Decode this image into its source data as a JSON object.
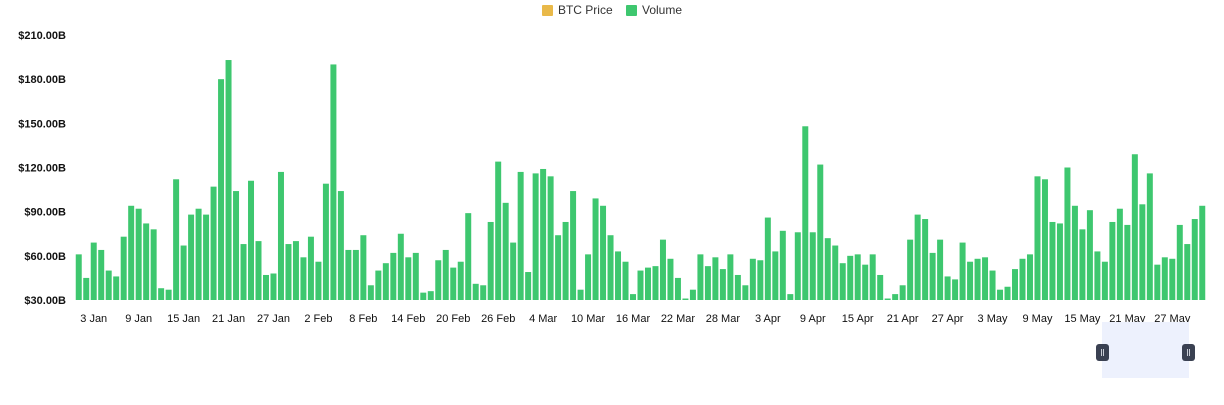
{
  "legend": {
    "items": [
      {
        "label": "BTC Price",
        "color": "#e9b949"
      },
      {
        "label": "Volume",
        "color": "#3ec76f"
      }
    ]
  },
  "chart_data": {
    "type": "bar",
    "title": "",
    "xlabel": "",
    "ylabel": "",
    "ylim": [
      30,
      210
    ],
    "y_unit_prefix": "$",
    "y_unit_suffix": "B",
    "yticks": [
      "$30.00B",
      "$60.00B",
      "$90.00B",
      "$120.00B",
      "$150.00B",
      "$180.00B",
      "$210.00B"
    ],
    "xticks": [
      "3 Jan",
      "9 Jan",
      "15 Jan",
      "21 Jan",
      "27 Jan",
      "2 Feb",
      "8 Feb",
      "14 Feb",
      "20 Feb",
      "26 Feb",
      "4 Mar",
      "10 Mar",
      "16 Mar",
      "22 Mar",
      "28 Mar",
      "3 Apr",
      "9 Apr",
      "15 Apr",
      "21 Apr",
      "27 Apr",
      "3 May",
      "9 May",
      "15 May",
      "21 May",
      "27 May"
    ],
    "x_start": "1 Jan",
    "x_end": "31 May",
    "grid": false,
    "legend_position": "top",
    "series": [
      {
        "name": "Volume",
        "color": "#3ec76f",
        "values": [
          61,
          45,
          69,
          64,
          50,
          46,
          73,
          94,
          92,
          82,
          78,
          38,
          37,
          112,
          67,
          88,
          92,
          88,
          107,
          180,
          193,
          104,
          68,
          111,
          70,
          47,
          48,
          117,
          68,
          70,
          59,
          73,
          56,
          109,
          190,
          104,
          64,
          64,
          74,
          40,
          50,
          55,
          62,
          75,
          59,
          62,
          35,
          36,
          57,
          64,
          52,
          56,
          89,
          41,
          40,
          83,
          124,
          96,
          69,
          117,
          49,
          116,
          119,
          114,
          74,
          83,
          104,
          37,
          61,
          99,
          94,
          74,
          63,
          56,
          34,
          50,
          52,
          53,
          71,
          58,
          45,
          31,
          37,
          61,
          53,
          59,
          51,
          61,
          47,
          40,
          58,
          57,
          86,
          63,
          77,
          34,
          76,
          148,
          76,
          122,
          72,
          67,
          55,
          60,
          61,
          54,
          61,
          47,
          31,
          34,
          40,
          71,
          88,
          85,
          62,
          71,
          46,
          44,
          69,
          56,
          58,
          59,
          50,
          37,
          39,
          51,
          58,
          61,
          114,
          112,
          83,
          82,
          120,
          94,
          78,
          91,
          63,
          56,
          83,
          92,
          81,
          129,
          95,
          116,
          54,
          59,
          58,
          81,
          68,
          85,
          94
        ]
      }
    ]
  },
  "navigator": {}
}
